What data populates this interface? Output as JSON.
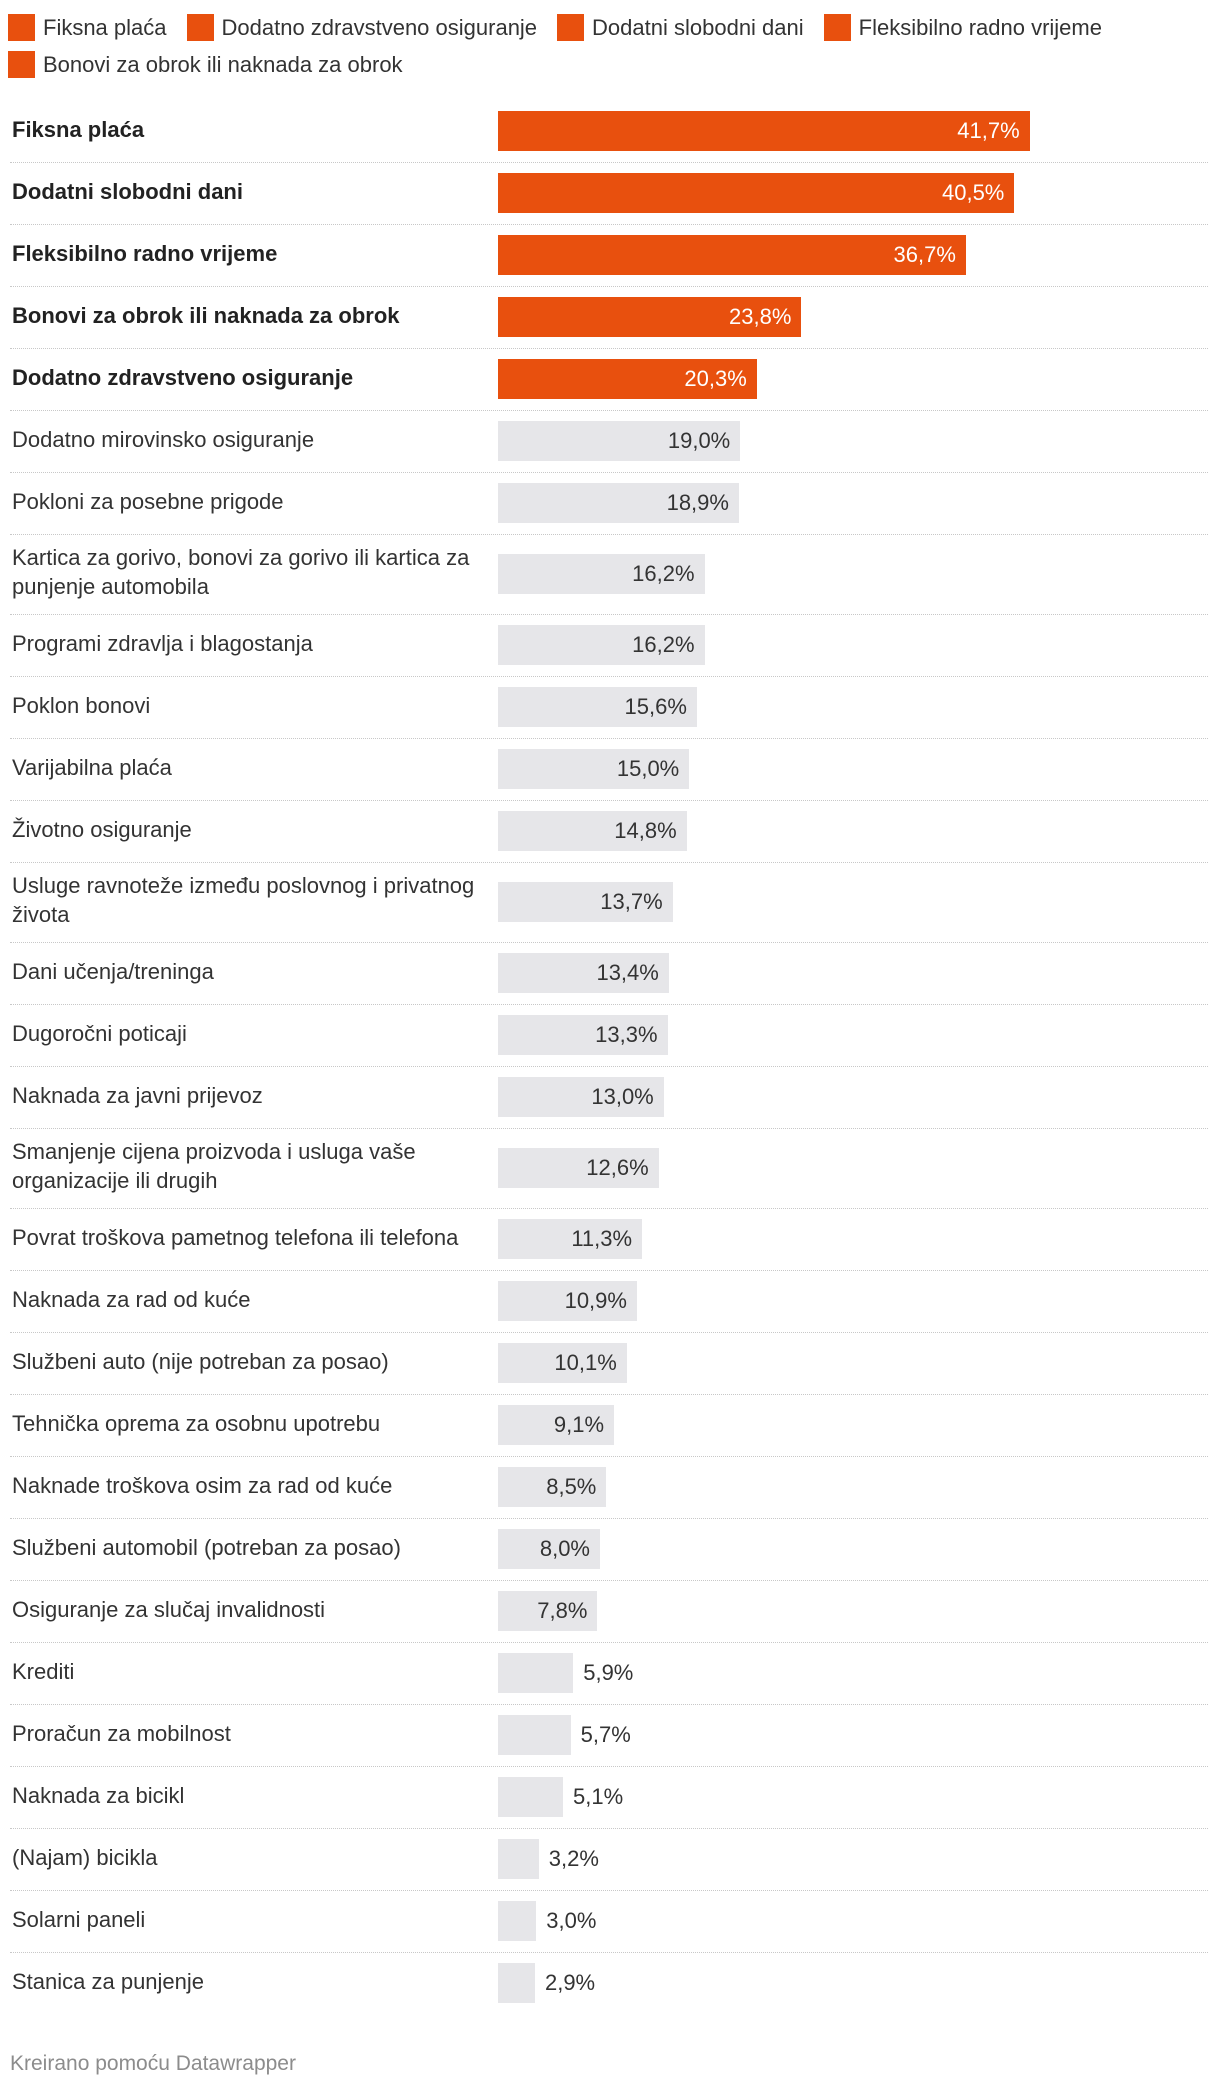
{
  "chart_data": {
    "type": "bar",
    "orientation": "horizontal",
    "legend": [
      {
        "label": "Fiksna plaća",
        "color": "#e8500e"
      },
      {
        "label": "Dodatno zdravstveno osiguranje",
        "color": "#e8500e"
      },
      {
        "label": "Dodatni slobodni dani",
        "color": "#e8500e"
      },
      {
        "label": "Fleksibilno radno vrijeme",
        "color": "#e8500e"
      },
      {
        "label": "Bonovi za obrok ili naknada za obrok",
        "color": "#e8500e"
      }
    ],
    "rows": [
      {
        "label": "Fiksna plaća",
        "value": 41.7,
        "display": "41,7%",
        "highlight": true
      },
      {
        "label": "Dodatni slobodni dani",
        "value": 40.5,
        "display": "40,5%",
        "highlight": true
      },
      {
        "label": "Fleksibilno radno vrijeme",
        "value": 36.7,
        "display": "36,7%",
        "highlight": true
      },
      {
        "label": "Bonovi za obrok ili naknada za obrok",
        "value": 23.8,
        "display": "23,8%",
        "highlight": true
      },
      {
        "label": "Dodatno zdravstveno osiguranje",
        "value": 20.3,
        "display": "20,3%",
        "highlight": true
      },
      {
        "label": "Dodatno mirovinsko osiguranje",
        "value": 19.0,
        "display": "19,0%",
        "highlight": false
      },
      {
        "label": "Pokloni za posebne prigode",
        "value": 18.9,
        "display": "18,9%",
        "highlight": false
      },
      {
        "label": "Kartica za gorivo, bonovi za gorivo ili kartica za punjenje automobila",
        "value": 16.2,
        "display": "16,2%",
        "highlight": false
      },
      {
        "label": "Programi zdravlja i blagostanja",
        "value": 16.2,
        "display": "16,2%",
        "highlight": false
      },
      {
        "label": "Poklon bonovi",
        "value": 15.6,
        "display": "15,6%",
        "highlight": false
      },
      {
        "label": "Varijabilna plaća",
        "value": 15.0,
        "display": "15,0%",
        "highlight": false
      },
      {
        "label": "Životno osiguranje",
        "value": 14.8,
        "display": "14,8%",
        "highlight": false
      },
      {
        "label": "Usluge ravnoteže između poslovnog i privatnog života",
        "value": 13.7,
        "display": "13,7%",
        "highlight": false
      },
      {
        "label": "Dani učenja/treninga",
        "value": 13.4,
        "display": "13,4%",
        "highlight": false
      },
      {
        "label": "Dugoročni poticaji",
        "value": 13.3,
        "display": "13,3%",
        "highlight": false
      },
      {
        "label": "Naknada za javni prijevoz",
        "value": 13.0,
        "display": "13,0%",
        "highlight": false
      },
      {
        "label": "Smanjenje cijena proizvoda i usluga vaše organizacije ili drugih",
        "value": 12.6,
        "display": "12,6%",
        "highlight": false
      },
      {
        "label": "Povrat troškova pametnog telefona ili telefona",
        "value": 11.3,
        "display": "11,3%",
        "highlight": false
      },
      {
        "label": "Naknada za rad od kuće",
        "value": 10.9,
        "display": "10,9%",
        "highlight": false
      },
      {
        "label": "Službeni auto (nije potreban za posao)",
        "value": 10.1,
        "display": "10,1%",
        "highlight": false
      },
      {
        "label": "Tehnička oprema za osobnu upotrebu",
        "value": 9.1,
        "display": "9,1%",
        "highlight": false
      },
      {
        "label": "Naknade troškova osim za rad od kuće",
        "value": 8.5,
        "display": "8,5%",
        "highlight": false
      },
      {
        "label": "Službeni automobil (potreban za posao)",
        "value": 8.0,
        "display": "8,0%",
        "highlight": false
      },
      {
        "label": "Osiguranje za slučaj invalidnosti",
        "value": 7.8,
        "display": "7,8%",
        "highlight": false
      },
      {
        "label": "Krediti",
        "value": 5.9,
        "display": "5,9%",
        "highlight": false
      },
      {
        "label": "Proračun za mobilnost",
        "value": 5.7,
        "display": "5,7%",
        "highlight": false
      },
      {
        "label": "Naknada za bicikl",
        "value": 5.1,
        "display": "5,1%",
        "highlight": false
      },
      {
        "label": "(Najam) bicikla",
        "value": 3.2,
        "display": "3,2%",
        "highlight": false
      },
      {
        "label": "Solarni paneli",
        "value": 3.0,
        "display": "3,0%",
        "highlight": false
      },
      {
        "label": "Stanica za punjenje",
        "value": 2.9,
        "display": "2,9%",
        "highlight": false
      }
    ],
    "xlim": [
      0,
      45
    ],
    "colors": {
      "highlight": "#e8500e",
      "default": "#e6e6e9",
      "highlight_text": "#ffffff",
      "default_text": "#333333"
    }
  },
  "footer": {
    "credit": "Kreirano pomoću Datawrapper"
  }
}
